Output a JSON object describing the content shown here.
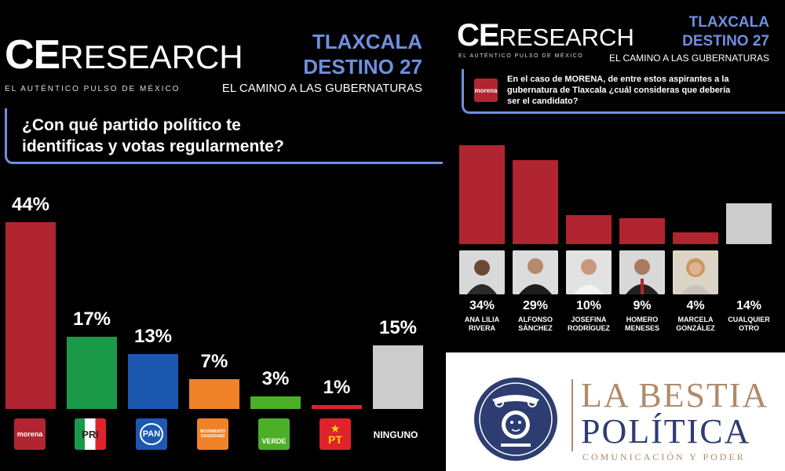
{
  "left": {
    "brand": {
      "ce": "CE",
      "research": "RESEARCH",
      "tagline": "EL AUTÉNTICO PULSO DE MÉXICO"
    },
    "header": {
      "state": "TLAXCALA",
      "edition": "DESTINO 27",
      "subtitle": "EL CAMINO A LAS GUBERNATURAS"
    },
    "question_line1": "¿Con qué partido político te",
    "question_line2": "identificas y votas regularmente?",
    "ninguno_label": "NINGUNO"
  },
  "right": {
    "brand": {
      "ce": "CE",
      "research": "RESEARCH",
      "tagline": "EL AUTÉNTICO PULSO DE MÉXICO"
    },
    "header": {
      "state": "TLAXCALA",
      "edition": "DESTINO 27",
      "subtitle": "EL CAMINO A LAS GUBERNATURAS"
    },
    "question_line1": "En el caso de MORENA, de entre estos aspirantes a la",
    "question_line2": "gubernatura de Tlaxcala ¿cuál consideras que debería",
    "question_line3": "ser el candidato?",
    "morena_badge": "morena"
  },
  "icons": {
    "morena": "morena",
    "pri": "PRI",
    "pan": "PAN",
    "mc": "MOVIMIENTO CIUDADANO",
    "verde": "VERDE",
    "pt": "PT"
  },
  "logo": {
    "line1": "LA BESTIA",
    "line2": "POLÍTICA",
    "tagline": "COMUNICACIÓN Y PODER"
  },
  "colors": {
    "morena": "#b0252f",
    "pri": "#1a9a48",
    "pan": "#1d58b0",
    "mc": "#f08229",
    "verde": "#4caf27",
    "pt": "#e0222a",
    "other": "#cccccc",
    "accent": "#6f8fe0"
  },
  "chart_data": [
    {
      "type": "bar",
      "title": "¿Con qué partido político te identificas y votas regularmente?",
      "categories": [
        "MORENA",
        "PRI",
        "PAN",
        "MC",
        "VERDE",
        "PT",
        "NINGUNO"
      ],
      "values": [
        44,
        17,
        13,
        7,
        3,
        1,
        15
      ],
      "labels": [
        "44%",
        "17%",
        "13%",
        "7%",
        "3%",
        "1%",
        "15%"
      ],
      "colors": [
        "#b0252f",
        "#1a9a48",
        "#1d58b0",
        "#f08229",
        "#4caf27",
        "#e0222a",
        "#cccccc"
      ],
      "ylim": [
        0,
        44
      ]
    },
    {
      "type": "bar",
      "title": "En el caso de MORENA, de entre estos aspirantes a la gubernatura de Tlaxcala ¿cuál consideras que debería ser el candidato?",
      "categories": [
        "ANA LILIA RIVERA",
        "ALFONSO SÁNCHEZ",
        "JOSEFINA RODRÍGUEZ",
        "HOMERO MENESES",
        "MARCELA GONZÁLEZ",
        "CUALQUIER OTRO"
      ],
      "name_line1": [
        "ANA LILIA",
        "ALFONSO",
        "JOSEFINA",
        "HOMERO",
        "MARCELA",
        "CUALQUIER"
      ],
      "name_line2": [
        "RIVERA",
        "SÁNCHEZ",
        "RODRÍGUEZ",
        "MENESES",
        "GONZÁLEZ",
        "OTRO"
      ],
      "values": [
        34,
        29,
        10,
        9,
        4,
        14
      ],
      "labels": [
        "34%",
        "29%",
        "10%",
        "9%",
        "4%",
        "14%"
      ],
      "colors": [
        "#b0252f",
        "#b0252f",
        "#b0252f",
        "#b0252f",
        "#b0252f",
        "#cccccc"
      ],
      "ylim": [
        0,
        34
      ]
    }
  ]
}
